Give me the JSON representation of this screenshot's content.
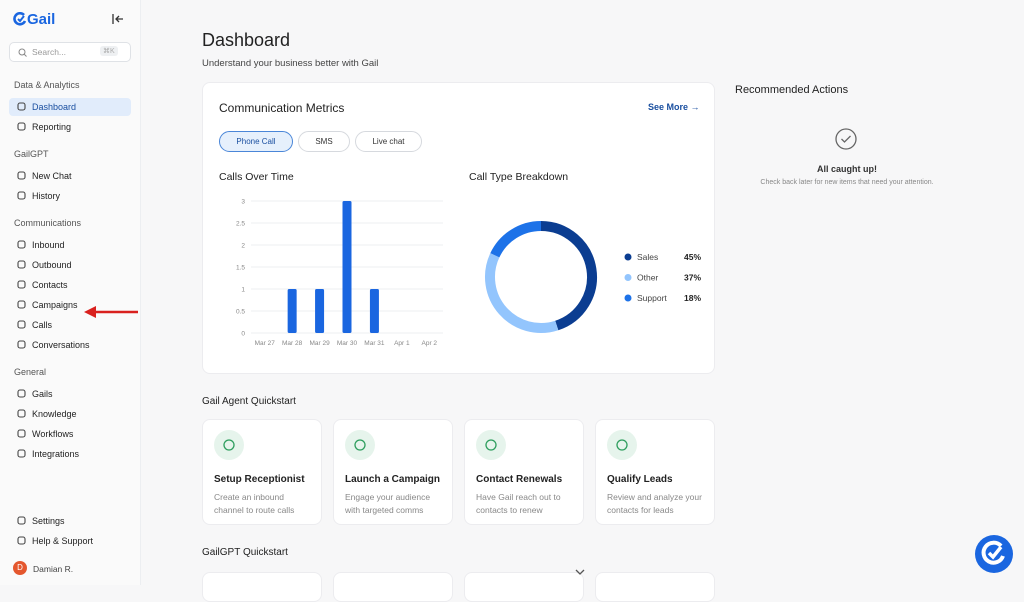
{
  "sidebar": {
    "logo": "Gail",
    "search_placeholder": "Search...",
    "search_shortcut": "⌘K",
    "sections": [
      {
        "title": "Data & Analytics",
        "items": [
          "Dashboard",
          "Reporting"
        ]
      },
      {
        "title": "GailGPT",
        "items": [
          "New Chat",
          "History"
        ]
      },
      {
        "title": "Communications",
        "items": [
          "Inbound",
          "Outbound",
          "Contacts",
          "Campaigns",
          "Calls",
          "Conversations"
        ]
      },
      {
        "title": "General",
        "items": [
          "Gails",
          "Knowledge",
          "Workflows",
          "Integrations"
        ]
      }
    ],
    "footer_items": [
      "Settings",
      "Help & Support"
    ],
    "user": {
      "initial": "D",
      "name": "Damian R."
    }
  },
  "header": {
    "title": "Dashboard",
    "subtitle": "Understand your business better with Gail"
  },
  "metrics": {
    "title": "Communication Metrics",
    "link": "See More",
    "tabs": [
      "Phone Call",
      "SMS",
      "Live chat"
    ]
  },
  "chart_data": [
    {
      "type": "bar",
      "title": "Calls Over Time",
      "categories": [
        "Mar 27",
        "Mar 28",
        "Mar 29",
        "Mar 30",
        "Mar 31",
        "Apr 1",
        "Apr 2"
      ],
      "values": [
        0,
        1,
        1,
        3,
        1,
        0,
        0
      ],
      "color": "#1a66e0",
      "ylim": [
        0,
        3
      ],
      "yticks": [
        0,
        0.5,
        1,
        1.5,
        2,
        2.5,
        3
      ],
      "grid": true
    },
    {
      "type": "donut",
      "title": "Call Type Breakdown",
      "categories": [
        "Sales",
        "Other",
        "Support"
      ],
      "values": [
        45,
        37,
        18
      ],
      "value_labels": [
        "45%",
        "37%",
        "18%"
      ],
      "colors": [
        "#0b3d91",
        "#93c5fd",
        "#1d72e8"
      ]
    }
  ],
  "recommended": {
    "title": "Recommended Actions",
    "status": "All caught up!",
    "note": "Check back later for new items that need your attention."
  },
  "agent_quickstart": {
    "title": "Gail Agent Quickstart",
    "cards": [
      {
        "title": "Setup Receptionist",
        "description": "Create an inbound channel to route calls"
      },
      {
        "title": "Launch a Campaign",
        "description": "Engage your audience with targeted comms"
      },
      {
        "title": "Contact Renewals",
        "description": "Have Gail reach out to contacts to renew"
      },
      {
        "title": "Qualify Leads",
        "description": "Review and analyze your contacts for leads"
      }
    ]
  },
  "gpt_quickstart": {
    "title": "GailGPT Quickstart"
  }
}
